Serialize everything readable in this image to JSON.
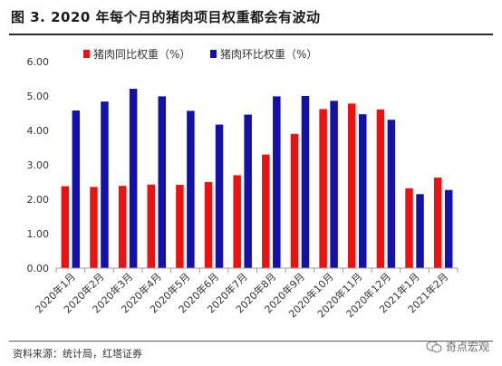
{
  "header": {
    "title": "图 3. 2020 年每个月的猪肉项目权重都会有波动"
  },
  "footer": {
    "source": "资料来源：统计局，红塔证券",
    "watermark": "奇点宏观"
  },
  "colors": {
    "series1": "#ee1111",
    "series2": "#1212aa",
    "axis": "#999999",
    "text": "#333333"
  },
  "chart_data": {
    "type": "bar",
    "categories": [
      "2020年1月",
      "2020年2月",
      "2020年3月",
      "2020年4月",
      "2020年5月",
      "2020年6月",
      "2020年7月",
      "2020年8月",
      "2020年9月",
      "2020年10月",
      "2020年11月",
      "2020年12月",
      "2021年1月",
      "2021年2月"
    ],
    "series": [
      {
        "name": "猪肉同比权重（%）",
        "values": [
          2.38,
          2.36,
          2.39,
          2.43,
          2.42,
          2.5,
          2.7,
          3.3,
          3.9,
          4.62,
          4.78,
          4.61,
          2.32,
          2.63
        ]
      },
      {
        "name": "猪肉环比权重（%）",
        "values": [
          4.58,
          4.84,
          5.21,
          4.99,
          4.57,
          4.17,
          4.46,
          4.99,
          5.0,
          4.86,
          4.47,
          4.31,
          2.15,
          2.27
        ]
      }
    ],
    "ylim": [
      0,
      6
    ],
    "yticks": [
      "0.00",
      "1.00",
      "2.00",
      "3.00",
      "4.00",
      "5.00",
      "6.00"
    ],
    "legend_position": "top-left",
    "grid": false
  }
}
